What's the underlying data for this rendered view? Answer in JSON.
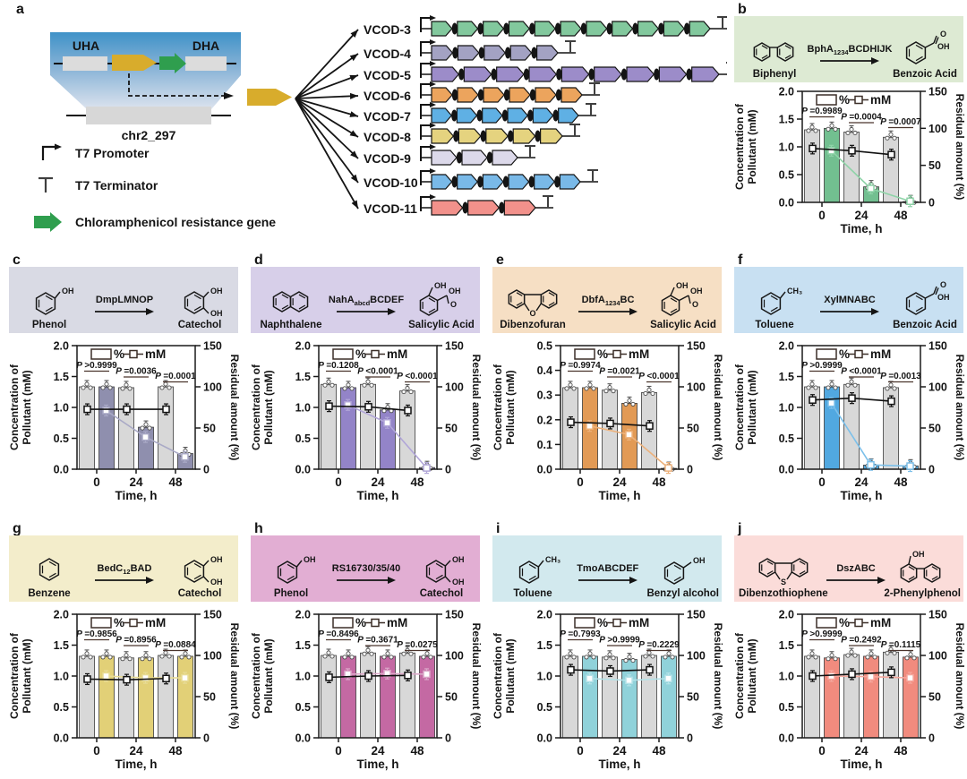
{
  "panel_a": {
    "letter": "a",
    "uha_label": "UHA",
    "dha_label": "DHA",
    "chr_label": "chr2_297",
    "insert_color": "#d8ac2c",
    "marker_color": "#2f9e4e",
    "legend": [
      {
        "icon": "t7-promoter-icon",
        "label": "T7 Promoter"
      },
      {
        "icon": "t7-terminator-icon",
        "label": "T7 Terminator"
      },
      {
        "icon": "resistance-gene-arrow-icon",
        "label": "Chloramphenicol resistance gene"
      }
    ],
    "constructs": [
      {
        "name": "VCOD-3",
        "color": "#82c89d",
        "genes": 11,
        "length": 795
      },
      {
        "name": "VCOD-4",
        "color": "#a3a2c3",
        "genes": 5,
        "length": 625
      },
      {
        "name": "VCOD-5",
        "color": "#9c8cc9",
        "genes": 9,
        "length": 805
      },
      {
        "name": "VCOD-6",
        "color": "#eca45d",
        "genes": 6,
        "length": 652
      },
      {
        "name": "VCOD-7",
        "color": "#5fb0e4",
        "genes": 6,
        "length": 648
      },
      {
        "name": "VCOD-8",
        "color": "#e5d37f",
        "genes": 5,
        "length": 630
      },
      {
        "name": "VCOD-9",
        "color": "#dcd9ea",
        "genes": 3,
        "length": 580
      },
      {
        "name": "VCOD-10",
        "color": "#79b9e8",
        "genes": 6,
        "length": 650
      },
      {
        "name": "VCOD-11",
        "color": "#f2918b",
        "genes": 3,
        "length": 600
      }
    ]
  },
  "panels": [
    {
      "letter": "b",
      "substrate": "Biphenyl",
      "substrate_struct": "biphenyl",
      "product": "Benzoic Acid",
      "product_struct": "benzoic-acid",
      "enzyme": {
        "pre": "BphA",
        "sub": "1234",
        "post": "BCDHIJK"
      },
      "scheme_bg": "#ddead3",
      "bar_color": "#72bf90",
      "line_color": "#8fd3a8"
    },
    {
      "letter": "c",
      "substrate": "Phenol",
      "substrate_struct": "phenol",
      "product": "Catechol",
      "product_struct": "catechol",
      "enzyme": {
        "pre": "DmpLMNOP",
        "sub": "",
        "post": ""
      },
      "scheme_bg": "#d9dae4",
      "bar_color": "#8f8fae",
      "line_color": "#a9a9c6"
    },
    {
      "letter": "d",
      "substrate": "Naphthalene",
      "substrate_struct": "naphthalene",
      "product": "Salicylic Acid",
      "product_struct": "salicylic-acid",
      "enzyme": {
        "pre": "NahA",
        "sub": "abcd",
        "post": "BCDEF"
      },
      "scheme_bg": "#d7cfe9",
      "bar_color": "#9384c8",
      "line_color": "#b1a6d8"
    },
    {
      "letter": "e",
      "substrate": "Dibenzofuran",
      "substrate_struct": "dibenzofuran",
      "product": "Salicylic Acid",
      "product_struct": "salicylic-acid",
      "enzyme": {
        "pre": "DbfA",
        "sub": "1234",
        "post": "BC"
      },
      "scheme_bg": "#f6dfc4",
      "bar_color": "#e29a55",
      "line_color": "#edb27c"
    },
    {
      "letter": "f",
      "substrate": "Toluene",
      "substrate_struct": "toluene",
      "product": "Benzoic Acid",
      "product_struct": "benzoic-acid",
      "enzyme": {
        "pre": "XylMNABC",
        "sub": "",
        "post": ""
      },
      "scheme_bg": "#c8e0f2",
      "bar_color": "#51a8e0",
      "line_color": "#7cc0ea"
    },
    {
      "letter": "g",
      "substrate": "Benzene",
      "substrate_struct": "benzene",
      "product": "Catechol",
      "product_struct": "catechol",
      "enzyme": {
        "pre": "BedC",
        "sub": "12",
        "post": "BAD"
      },
      "scheme_bg": "#f3edcb",
      "bar_color": "#e2d077",
      "line_color": "#e8dc96"
    },
    {
      "letter": "h",
      "substrate": "Phenol",
      "substrate_struct": "phenol",
      "product": "Catechol",
      "product_struct": "catechol",
      "enzyme": {
        "pre": "RS16730/35/40",
        "sub": "",
        "post": ""
      },
      "scheme_bg": "#e2aed3",
      "bar_color": "#c469a3",
      "line_color": "#dba8c9"
    },
    {
      "letter": "i",
      "substrate": "Toluene",
      "substrate_struct": "toluene",
      "product": "Benzyl alcohol",
      "product_struct": "benzyl-alcohol",
      "enzyme": {
        "pre": "TmoABCDEF",
        "sub": "",
        "post": ""
      },
      "scheme_bg": "#d2e9ee",
      "bar_color": "#90d2da",
      "line_color": "#b5e2e8"
    },
    {
      "letter": "j",
      "substrate": "Dibenzothiophene",
      "substrate_struct": "dibenzothiophene",
      "product": "2-Phenylphenol",
      "product_struct": "2-phenylphenol",
      "enzyme": {
        "pre": "DszABC",
        "sub": "",
        "post": ""
      },
      "scheme_bg": "#fbdcd9",
      "bar_color": "#f18b7e",
      "line_color": "#f5a89e"
    }
  ],
  "chart_data": [
    {
      "type": "bar+line",
      "categories": [
        "0",
        "24",
        "48"
      ],
      "xlabel": "Time, h",
      "ylabel_left": "Concentration of Pollutant (mM)",
      "ylabel_right": "Residual amount (%)",
      "ylim_left": [
        0,
        2.0
      ],
      "ylim_right": [
        0,
        150
      ],
      "yticks_left": [
        "0.0",
        "0.5",
        "1.0",
        "1.5",
        "2.0"
      ],
      "yticks_right": [
        "0",
        "50",
        "100",
        "150"
      ],
      "legend": [
        "%",
        "mM"
      ],
      "p_values": [
        "=0.9989",
        "=0.0004",
        "=0.0007"
      ],
      "bars_pct": {
        "control": [
          98,
          95,
          88
        ],
        "vcod": [
          100,
          21,
          1
        ]
      },
      "lines_mM": {
        "control": [
          0.97,
          0.93,
          0.86
        ],
        "vcod": [
          0.93,
          0.25,
          0.02
        ]
      }
    },
    {
      "type": "bar+line",
      "categories": [
        "0",
        "24",
        "48"
      ],
      "xlabel": "Time, h",
      "ylabel_left": "Concentration of Pollutant (mM)",
      "ylabel_right": "Residual amount (%)",
      "ylim_left": [
        0,
        2.0
      ],
      "ylim_right": [
        0,
        150
      ],
      "yticks_left": [
        "0.0",
        "0.5",
        "1.0",
        "1.5",
        "2.0"
      ],
      "yticks_right": [
        "0",
        "50",
        "100",
        "150"
      ],
      "legend": [
        "%",
        "mM"
      ],
      "p_values": [
        ">0.9999",
        "=0.0036",
        "=0.0001"
      ],
      "bars_pct": {
        "control": [
          100,
          99,
          100
        ],
        "vcod": [
          100,
          51,
          19
        ]
      },
      "lines_mM": {
        "control": [
          0.97,
          0.97,
          0.97
        ],
        "vcod": [
          0.95,
          0.52,
          0.2
        ]
      }
    },
    {
      "type": "bar+line",
      "categories": [
        "0",
        "24",
        "48"
      ],
      "xlabel": "Time, h",
      "ylabel_left": "Concentration of Pollutant (mM)",
      "ylabel_right": "Residual amount (%)",
      "ylim_left": [
        0,
        2.0
      ],
      "ylim_right": [
        0,
        150
      ],
      "yticks_left": [
        "0.0",
        "0.5",
        "1.0",
        "1.5",
        "2.0"
      ],
      "yticks_right": [
        "0",
        "50",
        "100",
        "150"
      ],
      "legend": [
        "%",
        "mM"
      ],
      "p_values": [
        "=0.1208",
        "<0.0001",
        "<0.0001"
      ],
      "bars_pct": {
        "control": [
          103,
          103,
          95
        ],
        "vcod": [
          99,
          72,
          2
        ]
      },
      "lines_mM": {
        "control": [
          1.02,
          1.01,
          0.95
        ],
        "vcod": [
          1.04,
          0.75,
          0.02
        ]
      }
    },
    {
      "type": "bar+line",
      "categories": [
        "0",
        "24",
        "48"
      ],
      "xlabel": "Time, h",
      "ylabel_left": "Concentration of Pollutant (mM)",
      "ylabel_right": "Residual amount (%)",
      "ylim_left": [
        0,
        0.5
      ],
      "ylim_right": [
        0,
        150
      ],
      "yticks_left": [
        "0.0",
        "0.1",
        "0.2",
        "0.3",
        "0.4",
        "0.5"
      ],
      "yticks_right": [
        "0",
        "50",
        "100",
        "150"
      ],
      "legend": [
        "%",
        "mM"
      ],
      "p_values": [
        "=0.9974",
        "=0.0021",
        "<0.0001"
      ],
      "bars_pct": {
        "control": [
          99,
          96,
          93
        ],
        "vcod": [
          99,
          80,
          1
        ]
      },
      "lines_mM": {
        "control": [
          0.19,
          0.185,
          0.175
        ],
        "vcod": [
          0.175,
          0.14,
          0.005
        ]
      }
    },
    {
      "type": "bar+line",
      "categories": [
        "0",
        "24",
        "48"
      ],
      "xlabel": "Time, h",
      "ylabel_left": "Concentration of Pollutant (mM)",
      "ylabel_right": "Residual amount (%)",
      "ylim_left": [
        0,
        2.0
      ],
      "ylim_right": [
        0,
        150
      ],
      "yticks_left": [
        "0.0",
        "0.5",
        "1.0",
        "1.5",
        "2.0"
      ],
      "yticks_right": [
        "0",
        "50",
        "100",
        "150"
      ],
      "legend": [
        "%",
        "mM"
      ],
      "p_values": [
        ">0.9999",
        "<0.0001",
        "=0.0013"
      ],
      "bars_pct": {
        "control": [
          100,
          103,
          99
        ],
        "vcod": [
          100,
          5,
          4
        ]
      },
      "lines_mM": {
        "control": [
          1.12,
          1.15,
          1.1
        ],
        "vcod": [
          1.07,
          0.07,
          0.05
        ]
      }
    },
    {
      "type": "bar+line",
      "categories": [
        "0",
        "24",
        "48"
      ],
      "xlabel": "Time, h",
      "ylabel_left": "Concentration of Pollutant (mM)",
      "ylabel_right": "Residual amount (%)",
      "ylim_left": [
        0,
        2.0
      ],
      "ylim_right": [
        0,
        150
      ],
      "yticks_left": [
        "0.0",
        "0.5",
        "1.0",
        "1.5",
        "2.0"
      ],
      "yticks_right": [
        "0",
        "50",
        "100",
        "150"
      ],
      "legend": [
        "%",
        "mM"
      ],
      "p_values": [
        "=0.9856",
        "=0.8956",
        "=0.0884"
      ],
      "bars_pct": {
        "control": [
          99,
          97,
          100
        ],
        "vcod": [
          99,
          97,
          99
        ]
      },
      "lines_mM": {
        "control": [
          0.95,
          0.94,
          0.96
        ],
        "vcod": [
          1.0,
          0.97,
          0.97
        ]
      }
    },
    {
      "type": "bar+line",
      "categories": [
        "0",
        "24",
        "48"
      ],
      "xlabel": "Time, h",
      "ylabel_left": "Concentration of Pollutant (mM)",
      "ylabel_right": "Residual amount (%)",
      "ylim_left": [
        0,
        2.0
      ],
      "ylim_right": [
        0,
        150
      ],
      "yticks_left": [
        "0.0",
        "0.5",
        "1.0",
        "1.5",
        "2.0"
      ],
      "yticks_right": [
        "0",
        "50",
        "100",
        "150"
      ],
      "legend": [
        "%",
        "mM"
      ],
      "p_values": [
        "=0.8496",
        "=0.3671",
        "=0.0275"
      ],
      "bars_pct": {
        "control": [
          100,
          103,
          103
        ],
        "vcod": [
          99,
          99,
          99
        ]
      },
      "lines_mM": {
        "control": [
          0.98,
          1.0,
          1.01
        ],
        "vcod": [
          1.03,
          1.04,
          1.03
        ]
      }
    },
    {
      "type": "bar+line",
      "categories": [
        "0",
        "24",
        "48"
      ],
      "xlabel": "Time, h",
      "ylabel_left": "Concentration of Pollutant (mM)",
      "ylabel_right": "Residual amount (%)",
      "ylim_left": [
        0,
        2.0
      ],
      "ylim_right": [
        0,
        150
      ],
      "yticks_left": [
        "0.0",
        "0.5",
        "1.0",
        "1.5",
        "2.0"
      ],
      "yticks_right": [
        "0",
        "50",
        "100",
        "150"
      ],
      "legend": [
        "%",
        "mM"
      ],
      "p_values": [
        "=0.7993",
        ">0.9999",
        "=0.2229"
      ],
      "bars_pct": {
        "control": [
          99,
          98,
          100
        ],
        "vcod": [
          99,
          95,
          99
        ]
      },
      "lines_mM": {
        "control": [
          1.1,
          1.08,
          1.1
        ],
        "vcod": [
          0.96,
          0.93,
          0.96
        ]
      }
    },
    {
      "type": "bar+line",
      "categories": [
        "0",
        "24",
        "48"
      ],
      "xlabel": "Time, h",
      "ylabel_left": "Concentration of Pollutant (mM)",
      "ylabel_right": "Residual amount (%)",
      "ylim_left": [
        0,
        2.0
      ],
      "ylim_right": [
        0,
        150
      ],
      "yticks_left": [
        "0.0",
        "0.5",
        "1.0",
        "1.5",
        "2.0"
      ],
      "yticks_right": [
        "0",
        "50",
        "100",
        "150"
      ],
      "legend": [
        "%",
        "mM"
      ],
      "p_values": [
        ">0.9999",
        "=0.2492",
        "=0.1115"
      ],
      "bars_pct": {
        "control": [
          99,
          101,
          104
        ],
        "vcod": [
          97,
          99,
          98
        ]
      },
      "lines_mM": {
        "control": [
          1.0,
          1.03,
          1.06
        ],
        "vcod": [
          1.0,
          0.99,
          0.97
        ]
      }
    }
  ]
}
